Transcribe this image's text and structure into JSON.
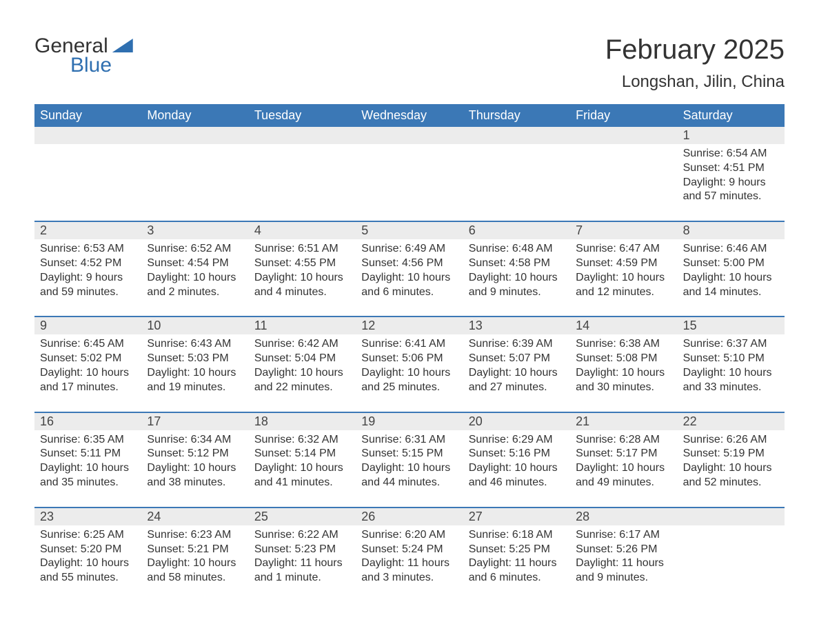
{
  "logo": {
    "text1": "General",
    "text2": "Blue"
  },
  "title": {
    "month": "February 2025",
    "location": "Longshan, Jilin, China"
  },
  "colors": {
    "header_bg": "#3b78b6",
    "header_text": "#ffffff",
    "daynum_bg": "#ececec",
    "week_divider": "#3b78b6",
    "body_text": "#333333",
    "logo_blue": "#2f6fb0",
    "page_bg": "#ffffff"
  },
  "daysOfWeek": [
    "Sunday",
    "Monday",
    "Tuesday",
    "Wednesday",
    "Thursday",
    "Friday",
    "Saturday"
  ],
  "weeks": [
    [
      null,
      null,
      null,
      null,
      null,
      null,
      {
        "n": "1",
        "sunrise": "Sunrise: 6:54 AM",
        "sunset": "Sunset: 4:51 PM",
        "daylight": "Daylight: 9 hours and 57 minutes."
      }
    ],
    [
      {
        "n": "2",
        "sunrise": "Sunrise: 6:53 AM",
        "sunset": "Sunset: 4:52 PM",
        "daylight": "Daylight: 9 hours and 59 minutes."
      },
      {
        "n": "3",
        "sunrise": "Sunrise: 6:52 AM",
        "sunset": "Sunset: 4:54 PM",
        "daylight": "Daylight: 10 hours and 2 minutes."
      },
      {
        "n": "4",
        "sunrise": "Sunrise: 6:51 AM",
        "sunset": "Sunset: 4:55 PM",
        "daylight": "Daylight: 10 hours and 4 minutes."
      },
      {
        "n": "5",
        "sunrise": "Sunrise: 6:49 AM",
        "sunset": "Sunset: 4:56 PM",
        "daylight": "Daylight: 10 hours and 6 minutes."
      },
      {
        "n": "6",
        "sunrise": "Sunrise: 6:48 AM",
        "sunset": "Sunset: 4:58 PM",
        "daylight": "Daylight: 10 hours and 9 minutes."
      },
      {
        "n": "7",
        "sunrise": "Sunrise: 6:47 AM",
        "sunset": "Sunset: 4:59 PM",
        "daylight": "Daylight: 10 hours and 12 minutes."
      },
      {
        "n": "8",
        "sunrise": "Sunrise: 6:46 AM",
        "sunset": "Sunset: 5:00 PM",
        "daylight": "Daylight: 10 hours and 14 minutes."
      }
    ],
    [
      {
        "n": "9",
        "sunrise": "Sunrise: 6:45 AM",
        "sunset": "Sunset: 5:02 PM",
        "daylight": "Daylight: 10 hours and 17 minutes."
      },
      {
        "n": "10",
        "sunrise": "Sunrise: 6:43 AM",
        "sunset": "Sunset: 5:03 PM",
        "daylight": "Daylight: 10 hours and 19 minutes."
      },
      {
        "n": "11",
        "sunrise": "Sunrise: 6:42 AM",
        "sunset": "Sunset: 5:04 PM",
        "daylight": "Daylight: 10 hours and 22 minutes."
      },
      {
        "n": "12",
        "sunrise": "Sunrise: 6:41 AM",
        "sunset": "Sunset: 5:06 PM",
        "daylight": "Daylight: 10 hours and 25 minutes."
      },
      {
        "n": "13",
        "sunrise": "Sunrise: 6:39 AM",
        "sunset": "Sunset: 5:07 PM",
        "daylight": "Daylight: 10 hours and 27 minutes."
      },
      {
        "n": "14",
        "sunrise": "Sunrise: 6:38 AM",
        "sunset": "Sunset: 5:08 PM",
        "daylight": "Daylight: 10 hours and 30 minutes."
      },
      {
        "n": "15",
        "sunrise": "Sunrise: 6:37 AM",
        "sunset": "Sunset: 5:10 PM",
        "daylight": "Daylight: 10 hours and 33 minutes."
      }
    ],
    [
      {
        "n": "16",
        "sunrise": "Sunrise: 6:35 AM",
        "sunset": "Sunset: 5:11 PM",
        "daylight": "Daylight: 10 hours and 35 minutes."
      },
      {
        "n": "17",
        "sunrise": "Sunrise: 6:34 AM",
        "sunset": "Sunset: 5:12 PM",
        "daylight": "Daylight: 10 hours and 38 minutes."
      },
      {
        "n": "18",
        "sunrise": "Sunrise: 6:32 AM",
        "sunset": "Sunset: 5:14 PM",
        "daylight": "Daylight: 10 hours and 41 minutes."
      },
      {
        "n": "19",
        "sunrise": "Sunrise: 6:31 AM",
        "sunset": "Sunset: 5:15 PM",
        "daylight": "Daylight: 10 hours and 44 minutes."
      },
      {
        "n": "20",
        "sunrise": "Sunrise: 6:29 AM",
        "sunset": "Sunset: 5:16 PM",
        "daylight": "Daylight: 10 hours and 46 minutes."
      },
      {
        "n": "21",
        "sunrise": "Sunrise: 6:28 AM",
        "sunset": "Sunset: 5:17 PM",
        "daylight": "Daylight: 10 hours and 49 minutes."
      },
      {
        "n": "22",
        "sunrise": "Sunrise: 6:26 AM",
        "sunset": "Sunset: 5:19 PM",
        "daylight": "Daylight: 10 hours and 52 minutes."
      }
    ],
    [
      {
        "n": "23",
        "sunrise": "Sunrise: 6:25 AM",
        "sunset": "Sunset: 5:20 PM",
        "daylight": "Daylight: 10 hours and 55 minutes."
      },
      {
        "n": "24",
        "sunrise": "Sunrise: 6:23 AM",
        "sunset": "Sunset: 5:21 PM",
        "daylight": "Daylight: 10 hours and 58 minutes."
      },
      {
        "n": "25",
        "sunrise": "Sunrise: 6:22 AM",
        "sunset": "Sunset: 5:23 PM",
        "daylight": "Daylight: 11 hours and 1 minute."
      },
      {
        "n": "26",
        "sunrise": "Sunrise: 6:20 AM",
        "sunset": "Sunset: 5:24 PM",
        "daylight": "Daylight: 11 hours and 3 minutes."
      },
      {
        "n": "27",
        "sunrise": "Sunrise: 6:18 AM",
        "sunset": "Sunset: 5:25 PM",
        "daylight": "Daylight: 11 hours and 6 minutes."
      },
      {
        "n": "28",
        "sunrise": "Sunrise: 6:17 AM",
        "sunset": "Sunset: 5:26 PM",
        "daylight": "Daylight: 11 hours and 9 minutes."
      },
      null
    ]
  ]
}
